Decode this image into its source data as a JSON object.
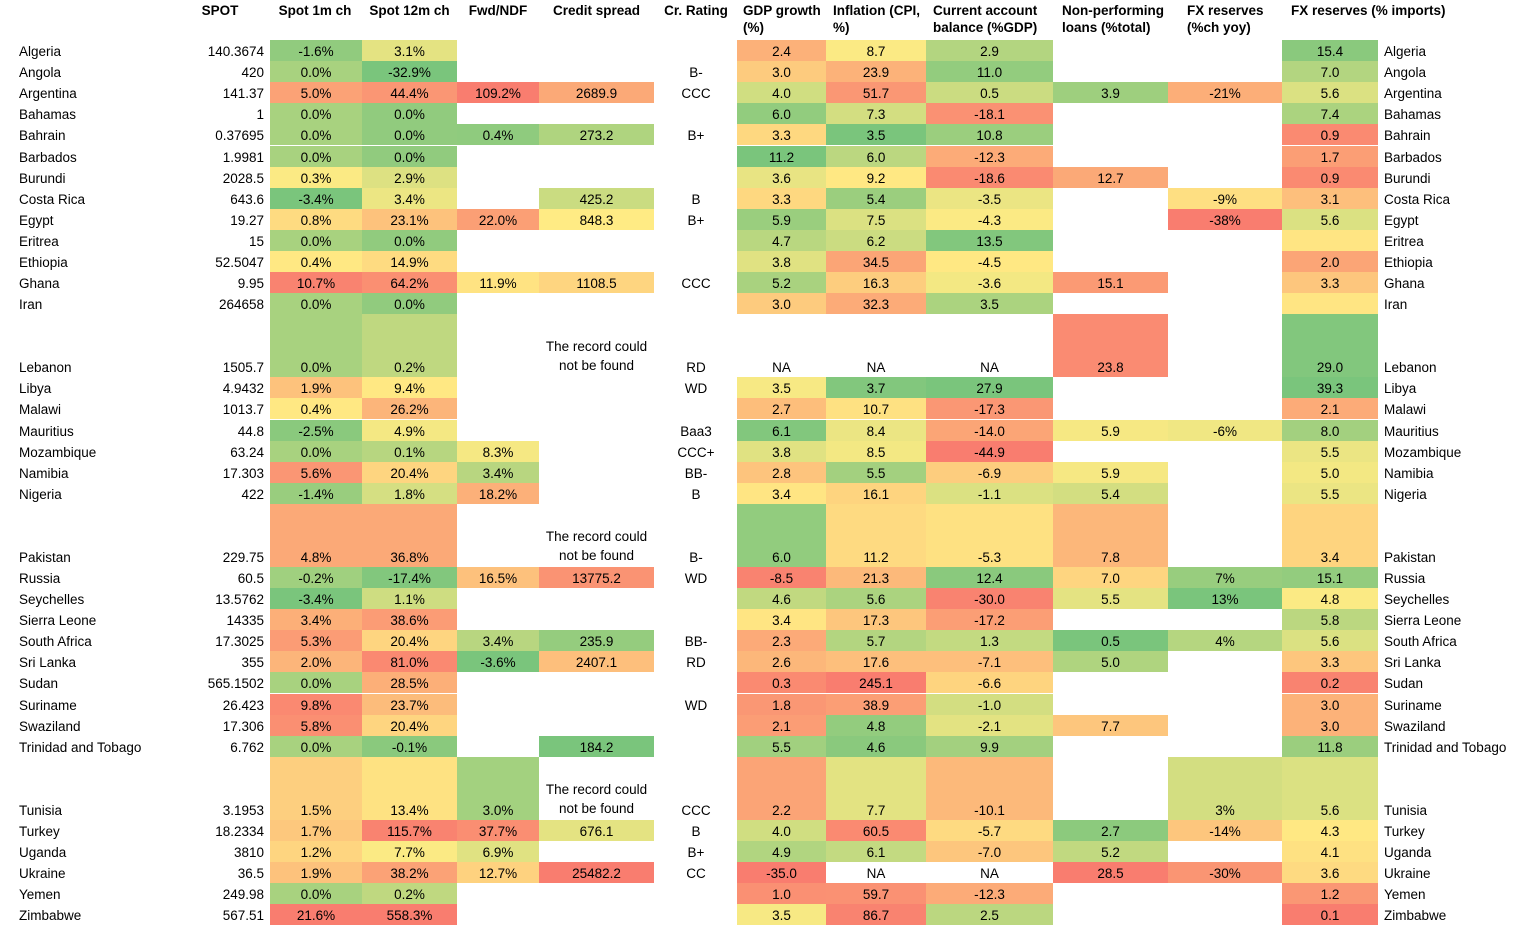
{
  "headers": {
    "spot": "SPOT",
    "spot1m": "Spot 1m ch",
    "spot12m": "Spot 12m ch",
    "fwd": "Fwd/NDF",
    "credit": "Credit spread",
    "rating": "Cr. Rating",
    "gdp": "GDP growth (%)",
    "infl": "Inflation (CPI, %)",
    "ca": "Current account balance (%GDP)",
    "npl": "Non-performing loans (%total)",
    "fxr": "FX reserves (%ch yoy)",
    "fxi": "FX reserves (% imports)"
  },
  "colors": {
    "green_dark": "#63be7b",
    "yellow": "#ffeb84",
    "red": "#f8696b"
  },
  "rows": [
    {
      "country": "Algeria",
      "spot": "140.3674",
      "s1m": "-1.6%",
      "s12m": "3.1%",
      "fwd": "",
      "credit": "",
      "rating": "",
      "gdp": "2.4",
      "infl": "8.7",
      "ca": "2.9",
      "npl": "",
      "fxr": "",
      "fxi": "15.4"
    },
    {
      "country": "Angola",
      "spot": "420",
      "s1m": "0.0%",
      "s12m": "-32.9%",
      "fwd": "",
      "credit": "",
      "rating": "B-",
      "gdp": "3.0",
      "infl": "23.9",
      "ca": "11.0",
      "npl": "",
      "fxr": "",
      "fxi": "7.0"
    },
    {
      "country": "Argentina",
      "spot": "141.37",
      "s1m": "5.0%",
      "s12m": "44.4%",
      "fwd": "109.2%",
      "credit": "2689.9",
      "rating": "CCC",
      "gdp": "4.0",
      "infl": "51.7",
      "ca": "0.5",
      "npl": "3.9",
      "fxr": "-21%",
      "fxi": "5.6"
    },
    {
      "country": "Bahamas",
      "spot": "1",
      "s1m": "0.0%",
      "s12m": "0.0%",
      "fwd": "",
      "credit": "",
      "rating": "",
      "gdp": "6.0",
      "infl": "7.3",
      "ca": "-18.1",
      "npl": "",
      "fxr": "",
      "fxi": "7.4"
    },
    {
      "country": "Bahrain",
      "spot": "0.37695",
      "s1m": "0.0%",
      "s12m": "0.0%",
      "fwd": "0.4%",
      "credit": "273.2",
      "rating": "B+",
      "gdp": "3.3",
      "infl": "3.5",
      "ca": "10.8",
      "npl": "",
      "fxr": "",
      "fxi": "0.9"
    },
    {
      "country": "Barbados",
      "spot": "1.9981",
      "s1m": "0.0%",
      "s12m": "0.0%",
      "fwd": "",
      "credit": "",
      "rating": "",
      "gdp": "11.2",
      "infl": "6.0",
      "ca": "-12.3",
      "npl": "",
      "fxr": "",
      "fxi": "1.7"
    },
    {
      "country": "Burundi",
      "spot": "2028.5",
      "s1m": "0.3%",
      "s12m": "2.9%",
      "fwd": "",
      "credit": "",
      "rating": "",
      "gdp": "3.6",
      "infl": "9.2",
      "ca": "-18.6",
      "npl": "12.7",
      "fxr": "",
      "fxi": "0.9"
    },
    {
      "country": "Costa Rica",
      "spot": "643.6",
      "s1m": "-3.4%",
      "s12m": "3.4%",
      "fwd": "",
      "credit": "425.2",
      "rating": "B",
      "gdp": "3.3",
      "infl": "5.4",
      "ca": "-3.5",
      "npl": "",
      "fxr": "-9%",
      "fxi": "3.1"
    },
    {
      "country": "Egypt",
      "spot": "19.27",
      "s1m": "0.8%",
      "s12m": "23.1%",
      "fwd": "22.0%",
      "credit": "848.3",
      "rating": "B+",
      "gdp": "5.9",
      "infl": "7.5",
      "ca": "-4.3",
      "npl": "",
      "fxr": "-38%",
      "fxi": "5.6"
    },
    {
      "country": "Eritrea",
      "spot": "15",
      "s1m": "0.0%",
      "s12m": "0.0%",
      "fwd": "",
      "credit": "",
      "rating": "",
      "gdp": "4.7",
      "infl": "6.2",
      "ca": "13.5",
      "npl": "",
      "fxr": "",
      "fxi": ""
    },
    {
      "country": "Ethiopia",
      "spot": "52.5047",
      "s1m": "0.4%",
      "s12m": "14.9%",
      "fwd": "",
      "credit": "",
      "rating": "",
      "gdp": "3.8",
      "infl": "34.5",
      "ca": "-4.5",
      "npl": "",
      "fxr": "",
      "fxi": "2.0"
    },
    {
      "country": "Ghana",
      "spot": "9.95",
      "s1m": "10.7%",
      "s12m": "64.2%",
      "fwd": "11.9%",
      "credit": "1108.5",
      "rating": "CCC",
      "gdp": "5.2",
      "infl": "16.3",
      "ca": "-3.6",
      "npl": "15.1",
      "fxr": "",
      "fxi": "3.3"
    },
    {
      "country": "Iran",
      "spot": "264658",
      "s1m": "0.0%",
      "s12m": "0.0%",
      "fwd": "",
      "credit": "",
      "rating": "",
      "gdp": "3.0",
      "infl": "32.3",
      "ca": "3.5",
      "npl": "",
      "fxr": "",
      "fxi": ""
    },
    {
      "country": "Lebanon",
      "spot": "1505.7",
      "s1m": "0.0%",
      "s12m": "0.2%",
      "fwd": "",
      "credit": "The record could not be found",
      "rating": "RD",
      "gdp": "NA",
      "infl": "NA",
      "ca": "NA",
      "npl": "23.8",
      "fxr": "",
      "fxi": "29.0"
    },
    {
      "country": "Libya",
      "spot": "4.9432",
      "s1m": "1.9%",
      "s12m": "9.4%",
      "fwd": "",
      "credit": "",
      "rating": "WD",
      "gdp": "3.5",
      "infl": "3.7",
      "ca": "27.9",
      "npl": "",
      "fxr": "",
      "fxi": "39.3"
    },
    {
      "country": "Malawi",
      "spot": "1013.7",
      "s1m": "0.4%",
      "s12m": "26.2%",
      "fwd": "",
      "credit": "",
      "rating": "",
      "gdp": "2.7",
      "infl": "10.7",
      "ca": "-17.3",
      "npl": "",
      "fxr": "",
      "fxi": "2.1"
    },
    {
      "country": "Mauritius",
      "spot": "44.8",
      "s1m": "-2.5%",
      "s12m": "4.9%",
      "fwd": "",
      "credit": "",
      "rating": "Baa3",
      "gdp": "6.1",
      "infl": "8.4",
      "ca": "-14.0",
      "npl": "5.9",
      "fxr": "-6%",
      "fxi": "8.0"
    },
    {
      "country": "Mozambique",
      "spot": "63.24",
      "s1m": "0.0%",
      "s12m": "0.1%",
      "fwd": "8.3%",
      "credit": "",
      "rating": "CCC+",
      "gdp": "3.8",
      "infl": "8.5",
      "ca": "-44.9",
      "npl": "",
      "fxr": "",
      "fxi": "5.5"
    },
    {
      "country": "Namibia",
      "spot": "17.303",
      "s1m": "5.6%",
      "s12m": "20.4%",
      "fwd": "3.4%",
      "credit": "",
      "rating": "BB-",
      "gdp": "2.8",
      "infl": "5.5",
      "ca": "-6.9",
      "npl": "5.9",
      "fxr": "",
      "fxi": "5.0"
    },
    {
      "country": "Nigeria",
      "spot": "422",
      "s1m": "-1.4%",
      "s12m": "1.8%",
      "fwd": "18.2%",
      "credit": "",
      "rating": "B",
      "gdp": "3.4",
      "infl": "16.1",
      "ca": "-1.1",
      "npl": "5.4",
      "fxr": "",
      "fxi": "5.5"
    },
    {
      "country": "Pakistan",
      "spot": "229.75",
      "s1m": "4.8%",
      "s12m": "36.8%",
      "fwd": "",
      "credit": "The record could not be found",
      "rating": "B-",
      "gdp": "6.0",
      "infl": "11.2",
      "ca": "-5.3",
      "npl": "7.8",
      "fxr": "",
      "fxi": "3.4"
    },
    {
      "country": "Russia",
      "spot": "60.5",
      "s1m": "-0.2%",
      "s12m": "-17.4%",
      "fwd": "16.5%",
      "credit": "13775.2",
      "rating": "WD",
      "gdp": "-8.5",
      "infl": "21.3",
      "ca": "12.4",
      "npl": "7.0",
      "fxr": "7%",
      "fxi": "15.1"
    },
    {
      "country": "Seychelles",
      "spot": "13.5762",
      "s1m": "-3.4%",
      "s12m": "1.1%",
      "fwd": "",
      "credit": "",
      "rating": "",
      "gdp": "4.6",
      "infl": "5.6",
      "ca": "-30.0",
      "npl": "5.5",
      "fxr": "13%",
      "fxi": "4.8"
    },
    {
      "country": "Sierra Leone",
      "spot": "14335",
      "s1m": "3.4%",
      "s12m": "38.6%",
      "fwd": "",
      "credit": "",
      "rating": "",
      "gdp": "3.4",
      "infl": "17.3",
      "ca": "-17.2",
      "npl": "",
      "fxr": "",
      "fxi": "5.8"
    },
    {
      "country": "South Africa",
      "spot": "17.3025",
      "s1m": "5.3%",
      "s12m": "20.4%",
      "fwd": "3.4%",
      "credit": "235.9",
      "rating": "BB-",
      "gdp": "2.3",
      "infl": "5.7",
      "ca": "1.3",
      "npl": "0.5",
      "fxr": "4%",
      "fxi": "5.6"
    },
    {
      "country": "Sri Lanka",
      "spot": "355",
      "s1m": "2.0%",
      "s12m": "81.0%",
      "fwd": "-3.6%",
      "credit": "2407.1",
      "rating": "RD",
      "gdp": "2.6",
      "infl": "17.6",
      "ca": "-7.1",
      "npl": "5.0",
      "fxr": "",
      "fxi": "3.3"
    },
    {
      "country": "Sudan",
      "spot": "565.1502",
      "s1m": "0.0%",
      "s12m": "28.5%",
      "fwd": "",
      "credit": "",
      "rating": "",
      "gdp": "0.3",
      "infl": "245.1",
      "ca": "-6.6",
      "npl": "",
      "fxr": "",
      "fxi": "0.2"
    },
    {
      "country": "Suriname",
      "spot": "26.423",
      "s1m": "9.8%",
      "s12m": "23.7%",
      "fwd": "",
      "credit": "",
      "rating": "WD",
      "gdp": "1.8",
      "infl": "38.9",
      "ca": "-1.0",
      "npl": "",
      "fxr": "",
      "fxi": "3.0"
    },
    {
      "country": "Swaziland",
      "spot": "17.306",
      "s1m": "5.8%",
      "s12m": "20.4%",
      "fwd": "",
      "credit": "",
      "rating": "",
      "gdp": "2.1",
      "infl": "4.8",
      "ca": "-2.1",
      "npl": "7.7",
      "fxr": "",
      "fxi": "3.0"
    },
    {
      "country": "Trinidad and Tobago",
      "spot": "6.762",
      "s1m": "0.0%",
      "s12m": "-0.1%",
      "fwd": "",
      "credit": "184.2",
      "rating": "",
      "gdp": "5.5",
      "infl": "4.6",
      "ca": "9.9",
      "npl": "",
      "fxr": "",
      "fxi": "11.8"
    },
    {
      "country": "Tunisia",
      "spot": "3.1953",
      "s1m": "1.5%",
      "s12m": "13.4%",
      "fwd": "3.0%",
      "credit": "The record could not be found",
      "rating": "CCC",
      "gdp": "2.2",
      "infl": "7.7",
      "ca": "-10.1",
      "npl": "",
      "fxr": "3%",
      "fxi": "5.6"
    },
    {
      "country": "Turkey",
      "spot": "18.2334",
      "s1m": "1.7%",
      "s12m": "115.7%",
      "fwd": "37.7%",
      "credit": "676.1",
      "rating": "B",
      "gdp": "4.0",
      "infl": "60.5",
      "ca": "-5.7",
      "npl": "2.7",
      "fxr": "-14%",
      "fxi": "4.3"
    },
    {
      "country": "Uganda",
      "spot": "3810",
      "s1m": "1.2%",
      "s12m": "7.7%",
      "fwd": "6.9%",
      "credit": "",
      "rating": "B+",
      "gdp": "4.9",
      "infl": "6.1",
      "ca": "-7.0",
      "npl": "5.2",
      "fxr": "",
      "fxi": "4.1"
    },
    {
      "country": "Ukraine",
      "spot": "36.5",
      "s1m": "1.9%",
      "s12m": "38.2%",
      "fwd": "12.7%",
      "credit": "25482.2",
      "rating": "CC",
      "gdp": "-35.0",
      "infl": "NA",
      "ca": "NA",
      "npl": "28.5",
      "fxr": "-30%",
      "fxi": "3.6"
    },
    {
      "country": "Yemen",
      "spot": "249.98",
      "s1m": "0.0%",
      "s12m": "0.2%",
      "fwd": "",
      "credit": "",
      "rating": "",
      "gdp": "1.0",
      "infl": "59.7",
      "ca": "-12.3",
      "npl": "",
      "fxr": "",
      "fxi": "1.2"
    },
    {
      "country": "Zimbabwe",
      "spot": "567.51",
      "s1m": "21.6%",
      "s12m": "558.3%",
      "fwd": "",
      "credit": "",
      "rating": "",
      "gdp": "3.5",
      "infl": "86.7",
      "ca": "2.5",
      "npl": "",
      "fxr": "",
      "fxi": "0.1"
    }
  ]
}
